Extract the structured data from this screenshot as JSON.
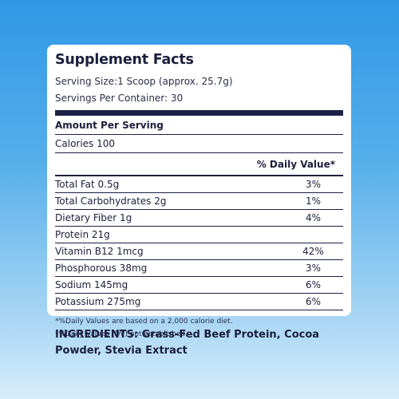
{
  "panel": {
    "title": "Supplement Facts",
    "serving_size": "Serving Size:1 Scoop (approx. 25.7g)",
    "servings_per_container": "Servings Per Container: 30",
    "amount_per_serving": "Amount Per Serving",
    "calories": "Calories 100",
    "daily_value_header": "% Daily Value*",
    "nutrients": [
      {
        "name": "Total Fat 0.5g",
        "dv": "3%"
      },
      {
        "name": "Total Carbohydrates 2g",
        "dv": "1%"
      },
      {
        "name": "Dietary Fiber 1g",
        "dv": "4%"
      },
      {
        "name": "Protein 21g",
        "dv": ""
      },
      {
        "name": "Vitamin B12  1mcg",
        "dv": "42%"
      },
      {
        "name": "Phosphorous 38mg",
        "dv": "3%"
      },
      {
        "name": "Sodium 145mg",
        "dv": "6%"
      },
      {
        "name": "Potassium 275mg",
        "dv": "6%"
      }
    ],
    "footnote_1": "*%Daily Values are based on a 2,000 calorie diet.",
    "footnote_2": "*%Daily Values (DV) not established."
  },
  "ingredients": "INGREDIENTS: Grass-Fed Beef Protein, Cocoa Powder, Stevia Extract"
}
